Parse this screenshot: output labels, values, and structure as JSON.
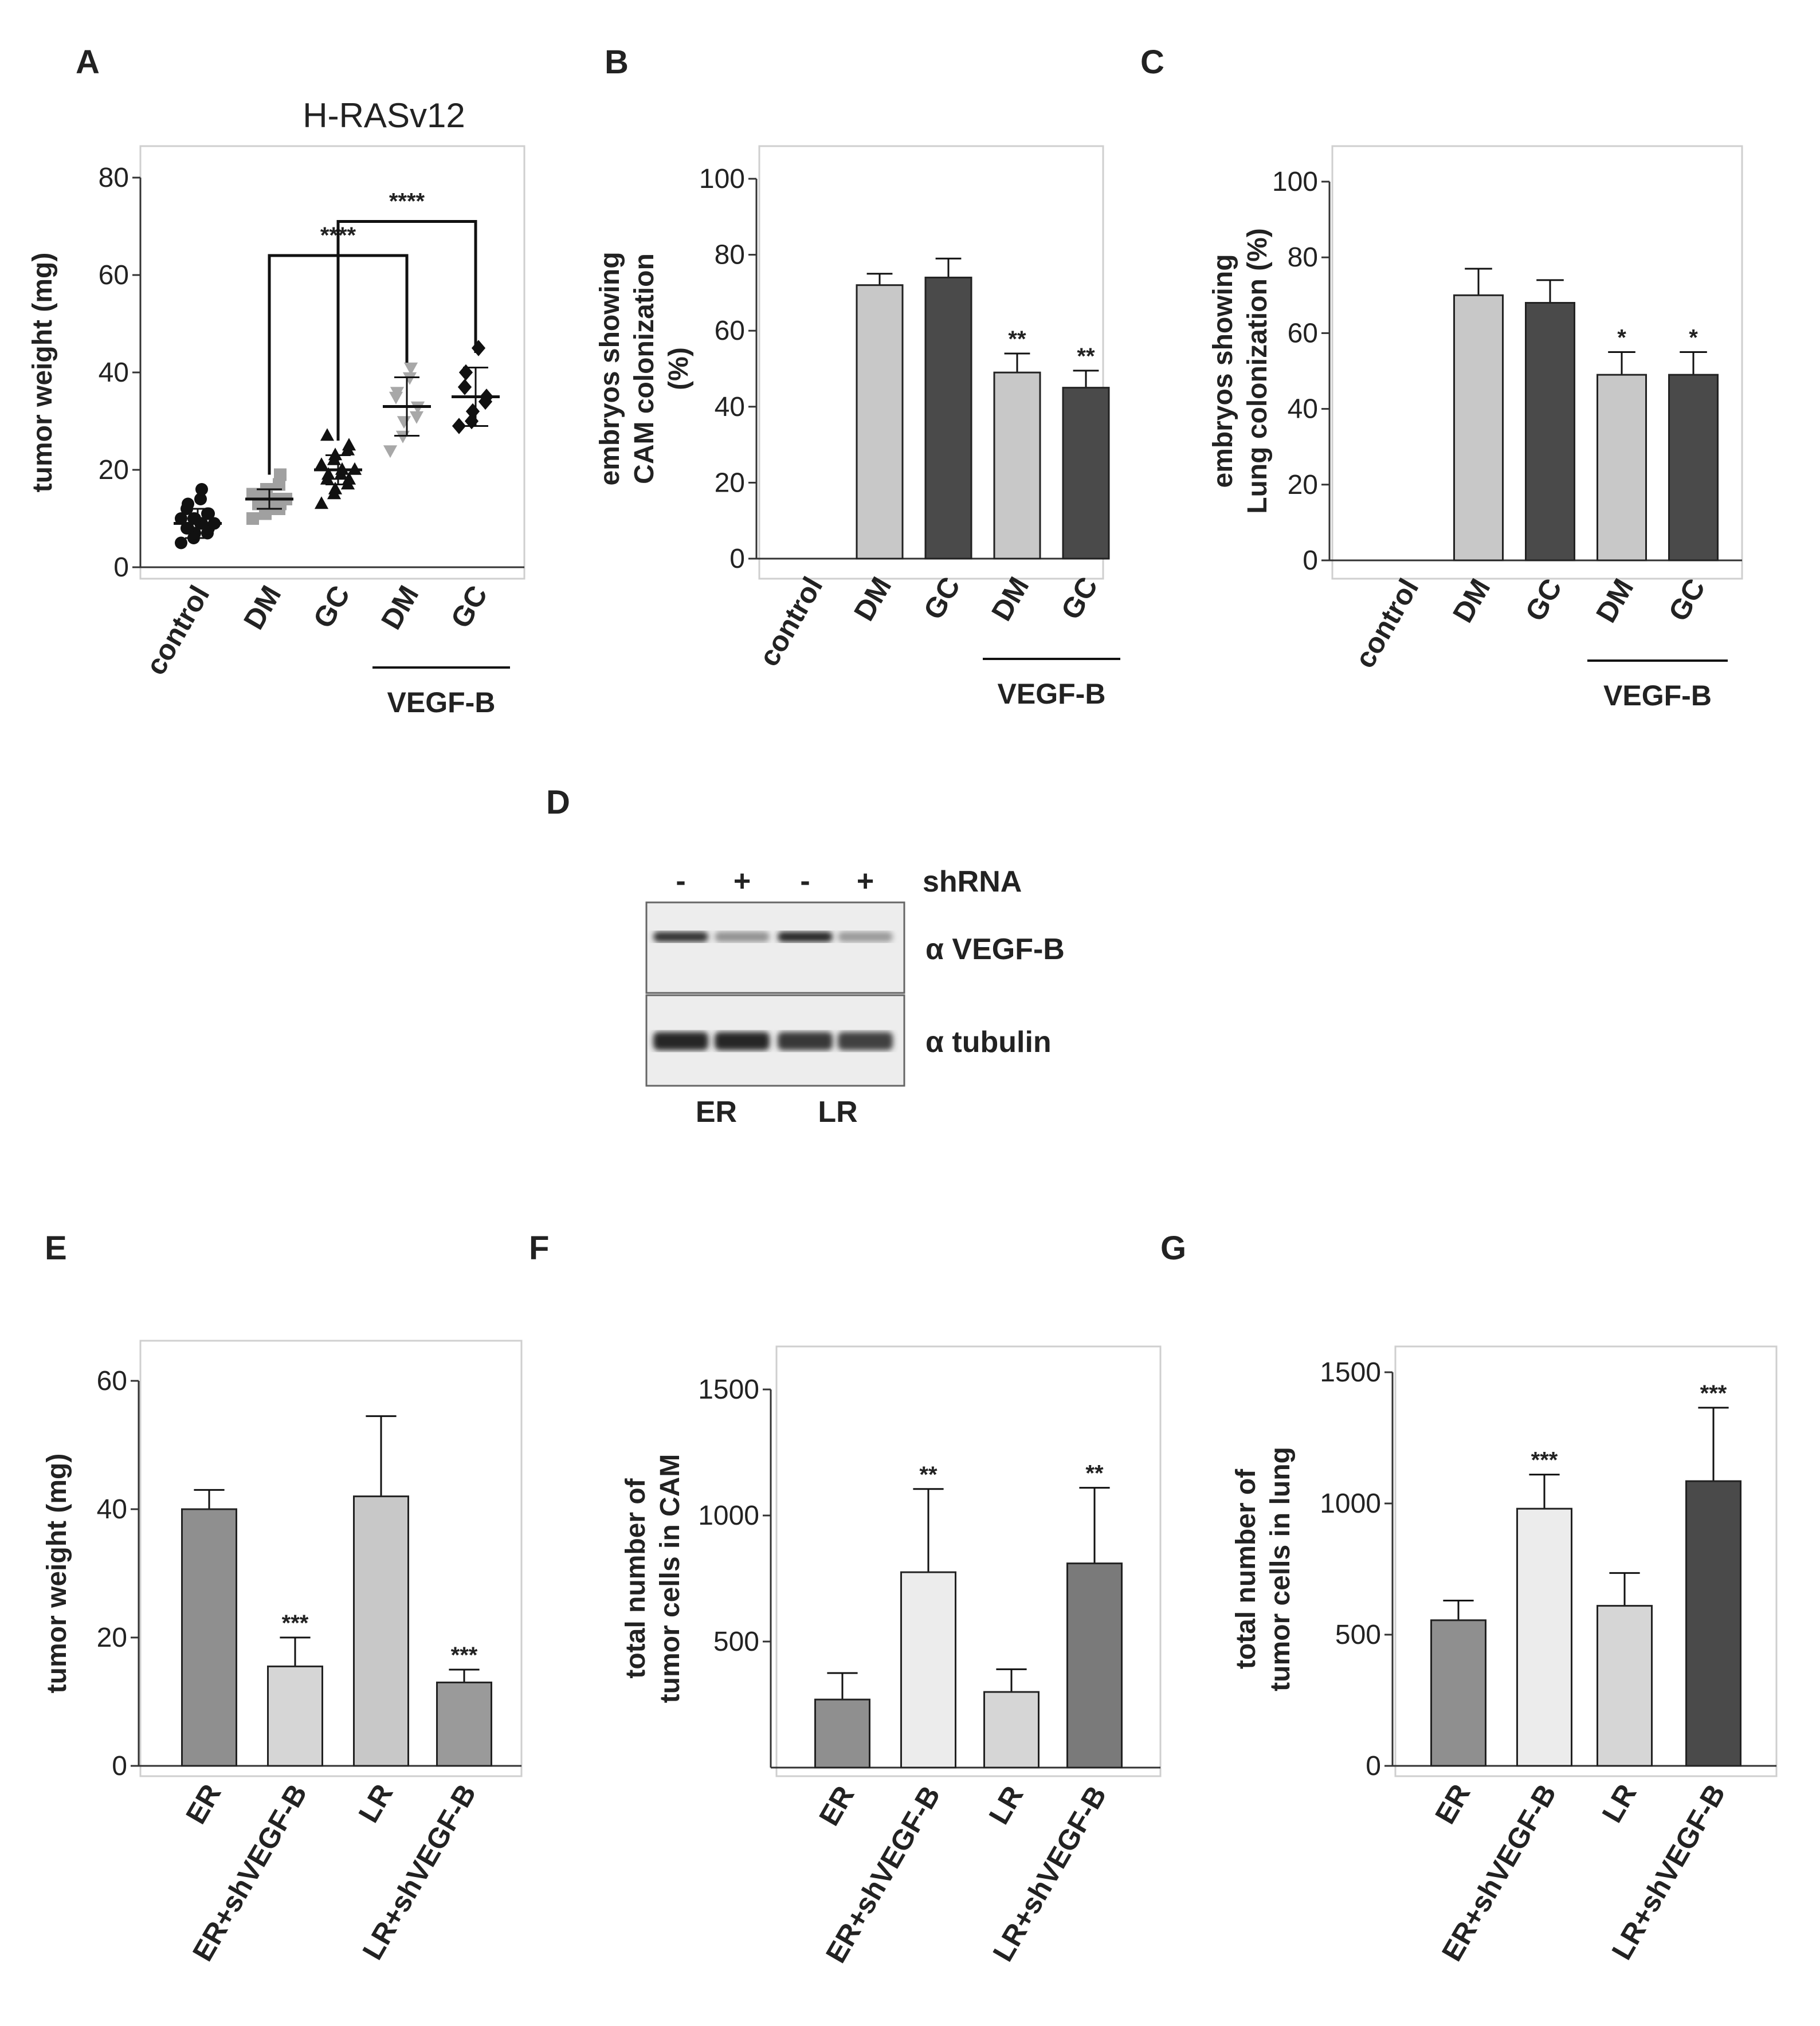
{
  "colors": {
    "light": "#c8c8c8",
    "dark": "#4a4a4a",
    "mid": "#8f8f8f",
    "pale": "#ececec",
    "lighter": "#d6d6d6",
    "axis": "#333333"
  },
  "chart_data": [
    {
      "panel": "A",
      "type": "scatter",
      "title": "H-RASv12",
      "ylabel": "tumor weight (mg)",
      "ylim": [
        0,
        80
      ],
      "yticks": [
        0,
        20,
        40,
        60,
        80
      ],
      "categories": [
        "control",
        "DM",
        "GC",
        "DM",
        "GC"
      ],
      "group_label": "VEGF-B",
      "group_range": [
        3,
        4
      ],
      "series": [
        {
          "category": "control",
          "marker": "circle",
          "color": "#111111",
          "mean": 9,
          "error": 3,
          "points": [
            5,
            6,
            7,
            7,
            8,
            8,
            8,
            9,
            9,
            9,
            10,
            10,
            10,
            11,
            11,
            12,
            13,
            14,
            16
          ]
        },
        {
          "category": "DM",
          "marker": "square",
          "color": "#a0a0a0",
          "mean": 14,
          "error": 2,
          "points": [
            10,
            11,
            12,
            12,
            13,
            13,
            13,
            14,
            14,
            14,
            15,
            15,
            16,
            17,
            19
          ]
        },
        {
          "category": "GC",
          "marker": "triangle-up",
          "color": "#111111",
          "mean": 20,
          "error": 3,
          "points": [
            13,
            15,
            16,
            17,
            18,
            18,
            19,
            19,
            20,
            20,
            21,
            22,
            23,
            24,
            25,
            27
          ]
        },
        {
          "category": "DM",
          "marker": "triangle-down",
          "color": "#a8a8a8",
          "mean": 33,
          "error": 6,
          "points": [
            24,
            27,
            30,
            31,
            33,
            35,
            36,
            39,
            41
          ]
        },
        {
          "category": "GC",
          "marker": "diamond",
          "color": "#111111",
          "mean": 35,
          "error": 6,
          "points": [
            29,
            30,
            32,
            34,
            35,
            37,
            40,
            45
          ]
        }
      ],
      "significance": [
        {
          "from": 1,
          "to": 3,
          "label": "****",
          "y": 64
        },
        {
          "from": 2,
          "to": 4,
          "label": "****",
          "y": 71
        }
      ]
    },
    {
      "panel": "B",
      "type": "bar",
      "ylabel": [
        "embryos showing",
        "CAM colonization",
        "(%)"
      ],
      "ylim": [
        0,
        100
      ],
      "yticks": [
        0,
        20,
        40,
        60,
        80,
        100
      ],
      "categories": [
        "control",
        "DM",
        "GC",
        "DM",
        "GC"
      ],
      "values": [
        0,
        72,
        74,
        49,
        45
      ],
      "errors": [
        0,
        3,
        5,
        5,
        4.5
      ],
      "colors": [
        "#c8c8c8",
        "#c8c8c8",
        "#4a4a4a",
        "#c8c8c8",
        "#4a4a4a"
      ],
      "labels": [
        "",
        "",
        "",
        "**",
        "**"
      ],
      "group_label": "VEGF-B",
      "group_range": [
        3,
        4
      ]
    },
    {
      "panel": "C",
      "type": "bar",
      "ylabel": [
        "embryos showing",
        "Lung  colonization (%)"
      ],
      "ylim": [
        0,
        100
      ],
      "yticks": [
        0,
        20,
        40,
        60,
        80,
        100
      ],
      "categories": [
        "control",
        "DM",
        "GC",
        "DM",
        "GC"
      ],
      "values": [
        0,
        70,
        68,
        49,
        49
      ],
      "errors": [
        0,
        7,
        6,
        6,
        6
      ],
      "colors": [
        "#c8c8c8",
        "#c8c8c8",
        "#4a4a4a",
        "#c8c8c8",
        "#4a4a4a"
      ],
      "labels": [
        "",
        "",
        "",
        "*",
        "*"
      ],
      "group_label": "VEGF-B",
      "group_range": [
        3,
        4
      ]
    },
    {
      "panel": "E",
      "type": "bar",
      "ylabel": [
        "tumor weight (mg)"
      ],
      "ylim": [
        0,
        60
      ],
      "yticks": [
        0,
        20,
        40,
        60
      ],
      "categories": [
        "ER",
        "ER+shVEGF-B",
        "LR",
        "LR+shVEGF-B"
      ],
      "values": [
        40,
        15.5,
        42,
        13
      ],
      "errors": [
        3,
        4.5,
        12.5,
        2
      ],
      "colors": [
        "#8f8f8f",
        "#d6d6d6",
        "#c8c8c8",
        "#9a9a9a"
      ],
      "labels": [
        "",
        "***",
        "",
        "***"
      ]
    },
    {
      "panel": "F",
      "type": "bar",
      "ylabel": [
        "total number of",
        "tumor cells in CAM"
      ],
      "ylim": [
        0,
        1500
      ],
      "yticks": [
        500,
        1000,
        1500
      ],
      "categories": [
        "ER",
        "ER+shVEGF-B",
        "LR",
        "LR+shVEGF-B"
      ],
      "values": [
        270,
        775,
        300,
        810
      ],
      "errors": [
        105,
        330,
        90,
        300
      ],
      "colors": [
        "#8f8f8f",
        "#ececec",
        "#d6d6d6",
        "#7a7a7a"
      ],
      "labels": [
        "",
        "**",
        "",
        "**"
      ]
    },
    {
      "panel": "G",
      "type": "bar",
      "ylabel": [
        "total number of",
        "tumor cells in lung"
      ],
      "ylim": [
        0,
        1500
      ],
      "yticks": [
        0,
        500,
        1000,
        1500
      ],
      "categories": [
        "ER",
        "ER+shVEGF-B",
        "LR",
        "LR+shVEGF-B"
      ],
      "values": [
        555,
        980,
        610,
        1085
      ],
      "errors": [
        75,
        130,
        125,
        280
      ],
      "colors": [
        "#8f8f8f",
        "#ececec",
        "#d6d6d6",
        "#4a4a4a"
      ],
      "labels": [
        "",
        "***",
        "",
        "***"
      ]
    }
  ],
  "blot": {
    "panel": "D",
    "lane_signs": [
      "-",
      "+",
      "-",
      "+"
    ],
    "treatment_label": "shRNA",
    "bands": [
      {
        "label": "α VEGF-B",
        "intensity": [
          0.95,
          0.3,
          1.0,
          0.25
        ]
      },
      {
        "label": "α tubulin",
        "intensity": [
          1.0,
          1.0,
          0.9,
          0.85
        ]
      }
    ],
    "groups": [
      "ER",
      "LR"
    ]
  }
}
